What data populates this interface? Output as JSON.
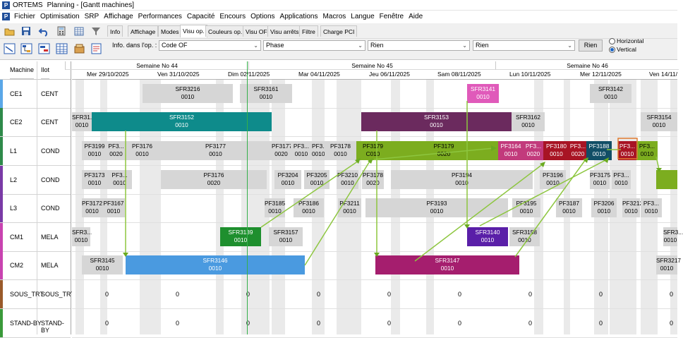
{
  "window": {
    "app": "ORTEMS",
    "title": "Planning - [Gantt machines]"
  },
  "menu": [
    "Fichier",
    "Optimisation",
    "SRP",
    "Affichage",
    "Performances",
    "Capacité",
    "Encours",
    "Options",
    "Applications",
    "Macros",
    "Langue",
    "Fenêtre",
    "Aide"
  ],
  "tabs": [
    "Info",
    "Affichage",
    "Modes",
    "Visu op.",
    "Couleurs op.",
    "Visu OF",
    "Visu arrêts",
    "Filtre",
    "Charge PCI"
  ],
  "active_tab": "Visu op.",
  "info_label": "Info. dans l'op. :",
  "selects": [
    "Code OF",
    "Phase",
    "Rien",
    "Rien"
  ],
  "rien_button": "Rien",
  "orientation": {
    "horizontal": "Horizontal",
    "vertical": "Vertical",
    "selected": "Vertical"
  },
  "left_headers": {
    "machine": "Machine",
    "ilot": "Ilot"
  },
  "rows": [
    {
      "machine": "CE1",
      "ilot": "CENT",
      "color": "#5aa7e8"
    },
    {
      "machine": "CE2",
      "ilot": "CENT",
      "color": "#2e8a4a"
    },
    {
      "machine": "L1",
      "ilot": "COND",
      "color": "#2e8a4a"
    },
    {
      "machine": "L2",
      "ilot": "COND",
      "color": "#7a3aa6"
    },
    {
      "machine": "L3",
      "ilot": "COND",
      "color": "#7a3aa6"
    },
    {
      "machine": "CM1",
      "ilot": "MELA",
      "color": "#c843b0"
    },
    {
      "machine": "CM2",
      "ilot": "MELA",
      "color": "#c843b0"
    },
    {
      "machine": "SOUS_TRT",
      "ilot": "SOUS_TRT",
      "color": "#9a5a2a"
    },
    {
      "machine": "STAND-BY",
      "ilot": "STAND-BY",
      "color": "#3a9a3a"
    }
  ],
  "weeks": [
    "Semaine No 44",
    "Semaine No 45",
    "Semaine No 46"
  ],
  "days": [
    "Mer 29/10/2025",
    "Ven 31/10/2025",
    "Dim 02/11/2025",
    "Mar 04/11/2025",
    "Jeu 06/11/2025",
    "Sam 08/11/2025",
    "Lun 10/11/2025",
    "Mer 12/11/2025",
    "Ven 14/11/"
  ],
  "zero_value": "0",
  "tasks": [
    {
      "row": 0,
      "a": "SFR3216",
      "b": "0010",
      "fill": "#d6d6d6",
      "fg": "#000"
    },
    {
      "row": 0,
      "a": "SFR3161",
      "b": "0010",
      "fill": "#d6d6d6",
      "fg": "#000"
    },
    {
      "row": 0,
      "a": "SFR3141",
      "b": "0010",
      "fill": "#e05aba",
      "fg": "#fff"
    },
    {
      "row": 0,
      "a": "SFR3142",
      "b": "0010",
      "fill": "#d6d6d6",
      "fg": "#000"
    },
    {
      "row": 1,
      "a": "SFR31...",
      "b": "0010",
      "fill": "#d6d6d6",
      "fg": "#000"
    },
    {
      "row": 1,
      "a": "SFR3152",
      "b": "0010",
      "fill": "#0e8b8b",
      "fg": "#fff"
    },
    {
      "row": 1,
      "a": "SFR3153",
      "b": "0010",
      "fill": "#6b2a5e",
      "fg": "#fff"
    },
    {
      "row": 1,
      "a": "SFR3162",
      "b": "0010",
      "fill": "#d6d6d6",
      "fg": "#000"
    },
    {
      "row": 1,
      "a": "SFR3154",
      "b": "0010",
      "fill": "#d6d6d6",
      "fg": "#000"
    },
    {
      "row": 2,
      "a": "PF3199",
      "b": "0010",
      "fill": "#d6d6d6",
      "fg": "#000"
    },
    {
      "row": 2,
      "a": "PF3...",
      "b": "0020",
      "fill": "#d6d6d6",
      "fg": "#000"
    },
    {
      "row": 2,
      "a": "PF3176",
      "b": "0010",
      "fill": "#d6d6d6",
      "fg": "#000"
    },
    {
      "row": 2,
      "a": "PF3177",
      "b": "0010",
      "fill": "#d6d6d6",
      "fg": "#000"
    },
    {
      "row": 2,
      "a": "PF3177",
      "b": "0020",
      "fill": "#d6d6d6",
      "fg": "#000"
    },
    {
      "row": 2,
      "a": "PF3...",
      "b": "0010",
      "fill": "#d6d6d6",
      "fg": "#000"
    },
    {
      "row": 2,
      "a": "PF3...",
      "b": "0010",
      "fill": "#d6d6d6",
      "fg": "#000"
    },
    {
      "row": 2,
      "a": "PF3178",
      "b": "0010",
      "fill": "#d6d6d6",
      "fg": "#000"
    },
    {
      "row": 2,
      "a": "PF3179",
      "b": "C010",
      "fill": "#7cad1f",
      "fg": "#000"
    },
    {
      "row": 2,
      "a": "PF3179",
      "b": "0020",
      "fill": "#7cad1f",
      "fg": "#000"
    },
    {
      "row": 2,
      "a": "PF3164",
      "b": "0010",
      "fill": "#c23a7c",
      "fg": "#fff"
    },
    {
      "row": 2,
      "a": "PF3...",
      "b": "0020",
      "fill": "#c23a7c",
      "fg": "#fff"
    },
    {
      "row": 2,
      "a": "PF3180",
      "b": "0010",
      "fill": "#a81424",
      "fg": "#fff"
    },
    {
      "row": 2,
      "a": "PF3...",
      "b": "0020",
      "fill": "#a81424",
      "fg": "#fff"
    },
    {
      "row": 2,
      "a": "PF3188",
      "b": "0010",
      "fill": "#114e66",
      "fg": "#fff"
    },
    {
      "row": 2,
      "a": "PF3...",
      "b": "0010",
      "fill": "#a81424",
      "fg": "#fff"
    },
    {
      "row": 2,
      "a": "PF3...",
      "b": "0010",
      "fill": "#7cad1f",
      "fg": "#000"
    },
    {
      "row": 3,
      "a": "PF3173",
      "b": "0010",
      "fill": "#d6d6d6",
      "fg": "#000"
    },
    {
      "row": 3,
      "a": "PF3...",
      "b": "0010",
      "fill": "#d6d6d6",
      "fg": "#000"
    },
    {
      "row": 3,
      "a": "PF3176",
      "b": "0020",
      "fill": "#d6d6d6",
      "fg": "#000"
    },
    {
      "row": 3,
      "a": "PF3204",
      "b": "0010",
      "fill": "#d6d6d6",
      "fg": "#000"
    },
    {
      "row": 3,
      "a": "PF3205",
      "b": "0010",
      "fill": "#d6d6d6",
      "fg": "#000"
    },
    {
      "row": 3,
      "a": "PF3210",
      "b": "0010",
      "fill": "#d6d6d6",
      "fg": "#000"
    },
    {
      "row": 3,
      "a": "PF3178",
      "b": "0020",
      "fill": "#d6d6d6",
      "fg": "#000"
    },
    {
      "row": 3,
      "a": "PF3194",
      "b": "0010",
      "fill": "#d6d6d6",
      "fg": "#000"
    },
    {
      "row": 3,
      "a": "PF3196",
      "b": "0010",
      "fill": "#d6d6d6",
      "fg": "#000"
    },
    {
      "row": 3,
      "a": "PF3175",
      "b": "0010",
      "fill": "#d6d6d6",
      "fg": "#000"
    },
    {
      "row": 3,
      "a": "PF3...",
      "b": "0010",
      "fill": "#d6d6d6",
      "fg": "#000"
    },
    {
      "row": 3,
      "a": "",
      "b": "",
      "fill": "#7cad1f",
      "fg": "#000"
    },
    {
      "row": 4,
      "a": "PF3172",
      "b": "0010",
      "fill": "#d6d6d6",
      "fg": "#000"
    },
    {
      "row": 4,
      "a": "PF3167",
      "b": "0010",
      "fill": "#d6d6d6",
      "fg": "#000"
    },
    {
      "row": 4,
      "a": "PF3185",
      "b": "0010",
      "fill": "#d6d6d6",
      "fg": "#000"
    },
    {
      "row": 4,
      "a": "PF3186",
      "b": "0010",
      "fill": "#d6d6d6",
      "fg": "#000"
    },
    {
      "row": 4,
      "a": "PF3211",
      "b": "0010",
      "fill": "#d6d6d6",
      "fg": "#000"
    },
    {
      "row": 4,
      "a": "PF3193",
      "b": "0010",
      "fill": "#d6d6d6",
      "fg": "#000"
    },
    {
      "row": 4,
      "a": "PF3195",
      "b": "0010",
      "fill": "#d6d6d6",
      "fg": "#000"
    },
    {
      "row": 4,
      "a": "PF3187",
      "b": "0010",
      "fill": "#d6d6d6",
      "fg": "#000"
    },
    {
      "row": 4,
      "a": "PF3206",
      "b": "0010",
      "fill": "#d6d6d6",
      "fg": "#000"
    },
    {
      "row": 4,
      "a": "PF3212",
      "b": "0010",
      "fill": "#d6d6d6",
      "fg": "#000"
    },
    {
      "row": 4,
      "a": "PF3...",
      "b": "0010",
      "fill": "#d6d6d6",
      "fg": "#000"
    },
    {
      "row": 5,
      "a": "SFR3...",
      "b": "0010",
      "fill": "#d6d6d6",
      "fg": "#000"
    },
    {
      "row": 5,
      "a": "SFR3139",
      "b": "0010",
      "fill": "#1e8f2e",
      "fg": "#fff"
    },
    {
      "row": 5,
      "a": "SFR3157",
      "b": "0010",
      "fill": "#d6d6d6",
      "fg": "#000"
    },
    {
      "row": 5,
      "a": "SFR3140",
      "b": "0010",
      "fill": "#5a1fa8",
      "fg": "#fff"
    },
    {
      "row": 5,
      "a": "SFR3158",
      "b": "0010",
      "fill": "#d6d6d6",
      "fg": "#000"
    },
    {
      "row": 5,
      "a": "SFR3...",
      "b": "0010",
      "fill": "#d6d6d6",
      "fg": "#000"
    },
    {
      "row": 6,
      "a": "SFR3145",
      "b": "0010",
      "fill": "#d6d6d6",
      "fg": "#000"
    },
    {
      "row": 6,
      "a": "SFR3146",
      "b": "0010",
      "fill": "#4a9ae0",
      "fg": "#fff"
    },
    {
      "row": 6,
      "a": "SFR3147",
      "b": "0010",
      "fill": "#a51e6e",
      "fg": "#fff"
    },
    {
      "row": 6,
      "a": "SFR3217",
      "b": "0010",
      "fill": "#d6d6d6",
      "fg": "#000"
    }
  ]
}
